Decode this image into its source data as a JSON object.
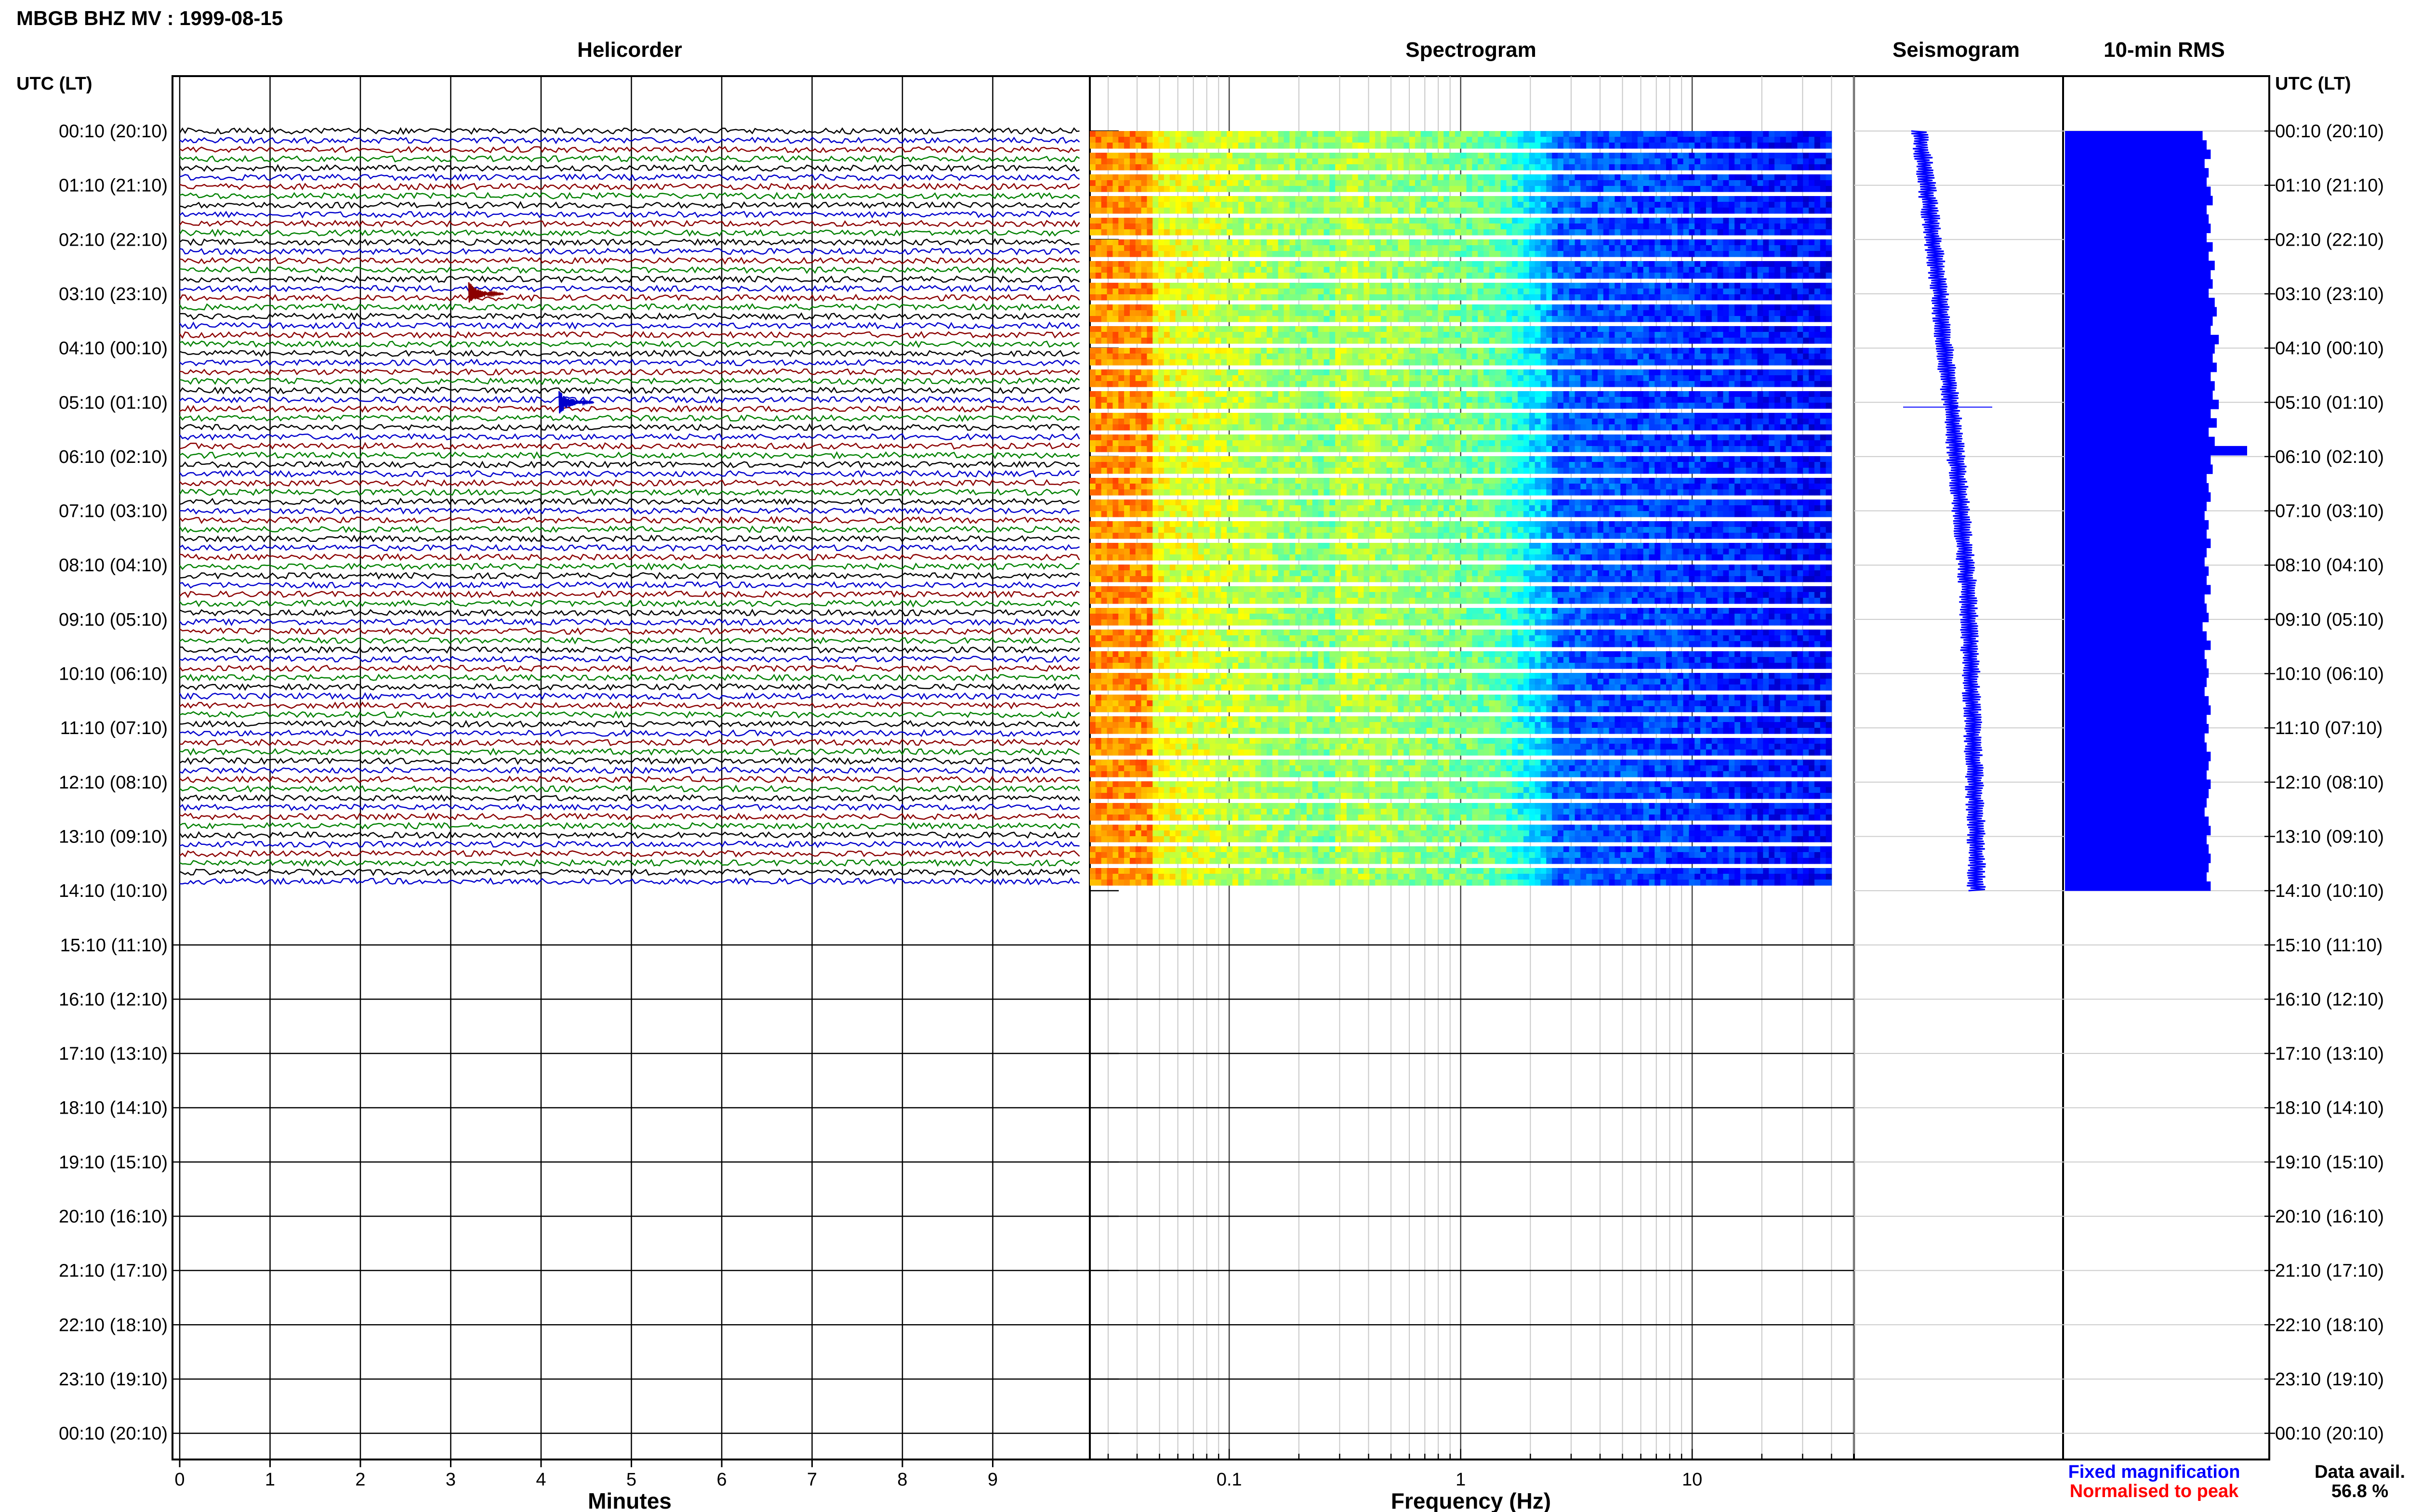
{
  "title": "MBGB BHZ MV : 1999-08-15",
  "panels": {
    "helicorder": "Helicorder",
    "spectrogram": "Spectrogram",
    "seismogram": "Seismogram",
    "rms": "10-min RMS"
  },
  "time_axis_label": "UTC (LT)",
  "time_labels": [
    "00:10 (20:10)",
    "01:10 (21:10)",
    "02:10 (22:10)",
    "03:10 (23:10)",
    "04:10 (00:10)",
    "05:10 (01:10)",
    "06:10 (02:10)",
    "07:10 (03:10)",
    "08:10 (04:10)",
    "09:10 (05:10)",
    "10:10 (06:10)",
    "11:10 (07:10)",
    "12:10 (08:10)",
    "13:10 (09:10)",
    "14:10 (10:10)",
    "15:10 (11:10)",
    "16:10 (12:10)",
    "17:10 (13:10)",
    "18:10 (14:10)",
    "19:10 (15:10)",
    "20:10 (16:10)",
    "21:10 (17:10)",
    "22:10 (18:10)",
    "23:10 (19:10)",
    "00:10 (20:10)"
  ],
  "legend": {
    "fixed": "Fixed magnification",
    "normalised": "Normalised to peak",
    "fixed_color": "#0000ff",
    "normalised_color": "#ff0000"
  },
  "data_avail": {
    "label": "Data avail.",
    "value": "56.8 %"
  },
  "colors": {
    "trace_cycle": [
      "#000000",
      "#0000cc",
      "#8b0000",
      "#008000"
    ],
    "seismogram": "#0000ff",
    "rms": "#0000ff",
    "spectrogram_low": "#000090",
    "spectrogram_high": "#ff0000"
  },
  "chart_data": [
    {
      "type": "line",
      "name": "helicorder",
      "title": "Helicorder",
      "xlabel": "Minutes",
      "x_ticks": [
        0,
        1,
        2,
        3,
        4,
        5,
        6,
        7,
        8,
        9
      ],
      "xlim": [
        0,
        10
      ],
      "trace_count": 82,
      "event_markers": [
        {
          "hour_label": "03:10 (23:10)",
          "minute": 3.2,
          "color": "#8b0000"
        },
        {
          "hour_label": "05:10 (01:10)",
          "minute": 4.2,
          "color": "#0000cc"
        }
      ]
    },
    {
      "type": "heatmap",
      "name": "spectrogram",
      "title": "Spectrogram",
      "xlabel": "Frequency (Hz)",
      "x_scale": "log",
      "x_ticks": [
        "0.1",
        "1",
        "10"
      ],
      "xlim": [
        0.025,
        50
      ],
      "data_xlim": [
        0.025,
        40
      ],
      "colormap": "jet"
    },
    {
      "type": "line",
      "name": "seismogram",
      "title": "Seismogram",
      "trend_offsets": [
        0,
        0.04,
        0.08,
        0.12,
        0.15,
        0.19,
        0.22,
        0.25,
        0.28,
        0.31,
        0.34,
        0.37,
        0.4,
        0.43,
        0.45
      ]
    },
    {
      "type": "bar",
      "name": "rms",
      "title": "10-min RMS",
      "values": [
        0.68,
        0.7,
        0.72,
        0.69,
        0.71,
        0.7,
        0.72,
        0.73,
        0.7,
        0.71,
        0.72,
        0.7,
        0.73,
        0.71,
        0.74,
        0.72,
        0.73,
        0.71,
        0.74,
        0.75,
        0.73,
        0.72,
        0.76,
        0.74,
        0.73,
        0.75,
        0.72,
        0.74,
        0.73,
        0.76,
        0.72,
        0.75,
        0.71,
        0.74,
        0.9,
        0.72,
        0.73,
        0.7,
        0.71,
        0.72,
        0.7,
        0.69,
        0.71,
        0.7,
        0.72,
        0.7,
        0.69,
        0.71,
        0.7,
        0.72,
        0.69,
        0.7,
        0.71,
        0.68,
        0.7,
        0.72,
        0.69,
        0.7,
        0.71,
        0.7,
        0.69,
        0.71,
        0.72,
        0.7,
        0.71,
        0.69,
        0.7,
        0.72,
        0.71,
        0.7,
        0.72,
        0.71,
        0.7,
        0.69,
        0.71,
        0.72,
        0.7,
        0.71,
        0.72,
        0.71,
        0.7,
        0.72
      ]
    }
  ]
}
